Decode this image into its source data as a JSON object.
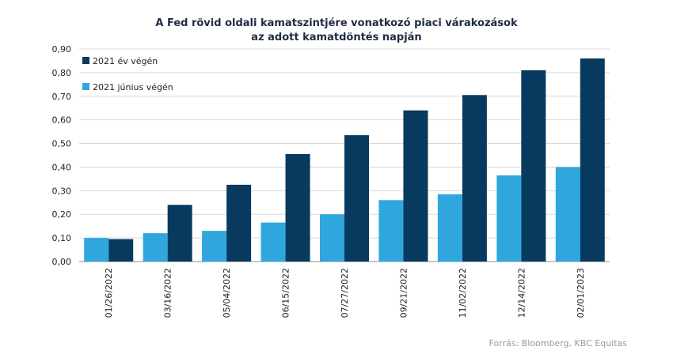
{
  "chart_data": {
    "type": "bar",
    "title": [
      "A Fed rövid oldali kamatszintjére vonatkozó piaci várakozások",
      "az adott kamatdöntés napján"
    ],
    "categories": [
      "01/26/2022",
      "03/16/2022",
      "05/04/2022",
      "06/15/2022",
      "07/27/2022",
      "09/21/2022",
      "11/02/2022",
      "12/14/2022",
      "02/01/2023"
    ],
    "series": [
      {
        "name": "2021 június végén",
        "color": "#2fa7de",
        "values": [
          0.1,
          0.12,
          0.13,
          0.165,
          0.2,
          0.26,
          0.285,
          0.365,
          0.4
        ]
      },
      {
        "name": "2021 év végén",
        "color": "#073a5e",
        "values": [
          0.095,
          0.24,
          0.325,
          0.455,
          0.535,
          0.64,
          0.705,
          0.81,
          0.86
        ]
      }
    ],
    "yticks": [
      "0,00",
      "0,10",
      "0,20",
      "0,30",
      "0,40",
      "0,50",
      "0,60",
      "0,70",
      "0,80",
      "0,90"
    ],
    "ylim": [
      0,
      0.9
    ],
    "legend": [
      {
        "label": "2021 év végén",
        "color": "#073a5e"
      },
      {
        "label": "2021 június végén",
        "color": "#2fa7de"
      }
    ],
    "grid": true,
    "legend_position": "top-left",
    "xlabel": "",
    "ylabel": ""
  },
  "source": "Forrás: Bloomberg, KBC Equitas"
}
